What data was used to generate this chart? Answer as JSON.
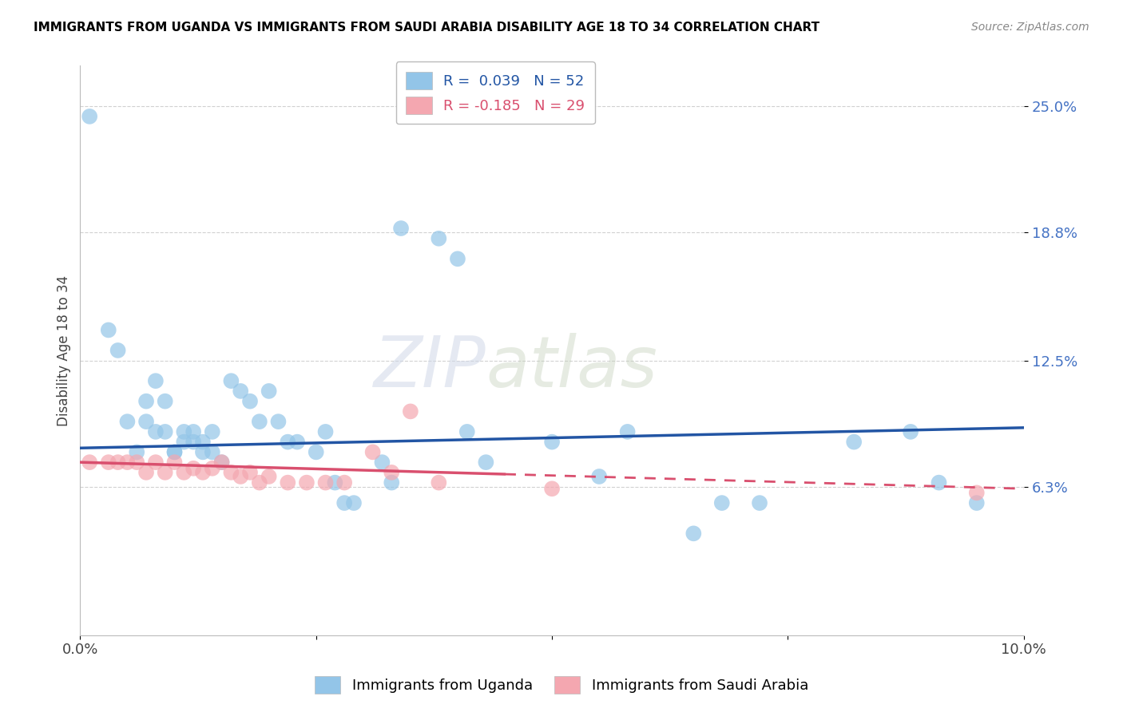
{
  "title": "IMMIGRANTS FROM UGANDA VS IMMIGRANTS FROM SAUDI ARABIA DISABILITY AGE 18 TO 34 CORRELATION CHART",
  "source": "Source: ZipAtlas.com",
  "ylabel": "Disability Age 18 to 34",
  "ytick_labels": [
    "6.3%",
    "12.5%",
    "18.8%",
    "25.0%"
  ],
  "ytick_values": [
    0.063,
    0.125,
    0.188,
    0.25
  ],
  "xlim": [
    0.0,
    0.1
  ],
  "ylim": [
    -0.01,
    0.27
  ],
  "color_uganda": "#93c5e8",
  "color_saudi": "#f4a7b0",
  "color_line_uganda": "#2255a4",
  "color_line_saudi": "#d94f6e",
  "watermark_zip": "ZIP",
  "watermark_atlas": "atlas",
  "uganda_x": [
    0.001,
    0.003,
    0.004,
    0.005,
    0.006,
    0.007,
    0.007,
    0.008,
    0.008,
    0.009,
    0.009,
    0.01,
    0.01,
    0.011,
    0.011,
    0.012,
    0.012,
    0.013,
    0.013,
    0.014,
    0.014,
    0.015,
    0.016,
    0.017,
    0.018,
    0.019,
    0.02,
    0.021,
    0.022,
    0.023,
    0.025,
    0.026,
    0.027,
    0.028,
    0.029,
    0.032,
    0.033,
    0.034,
    0.038,
    0.04,
    0.041,
    0.043,
    0.05,
    0.055,
    0.058,
    0.065,
    0.068,
    0.072,
    0.082,
    0.088,
    0.091,
    0.095
  ],
  "uganda_y": [
    0.245,
    0.14,
    0.13,
    0.095,
    0.08,
    0.105,
    0.095,
    0.115,
    0.09,
    0.105,
    0.09,
    0.08,
    0.08,
    0.09,
    0.085,
    0.09,
    0.085,
    0.085,
    0.08,
    0.09,
    0.08,
    0.075,
    0.115,
    0.11,
    0.105,
    0.095,
    0.11,
    0.095,
    0.085,
    0.085,
    0.08,
    0.09,
    0.065,
    0.055,
    0.055,
    0.075,
    0.065,
    0.19,
    0.185,
    0.175,
    0.09,
    0.075,
    0.085,
    0.068,
    0.09,
    0.04,
    0.055,
    0.055,
    0.085,
    0.09,
    0.065,
    0.055
  ],
  "saudi_x": [
    0.001,
    0.003,
    0.004,
    0.005,
    0.006,
    0.007,
    0.008,
    0.009,
    0.01,
    0.011,
    0.012,
    0.013,
    0.014,
    0.015,
    0.016,
    0.017,
    0.018,
    0.019,
    0.02,
    0.022,
    0.024,
    0.026,
    0.028,
    0.031,
    0.033,
    0.035,
    0.038,
    0.05,
    0.095
  ],
  "saudi_y": [
    0.075,
    0.075,
    0.075,
    0.075,
    0.075,
    0.07,
    0.075,
    0.07,
    0.075,
    0.07,
    0.072,
    0.07,
    0.072,
    0.075,
    0.07,
    0.068,
    0.07,
    0.065,
    0.068,
    0.065,
    0.065,
    0.065,
    0.065,
    0.08,
    0.07,
    0.1,
    0.065,
    0.062,
    0.06
  ],
  "trendline_uganda_x0": 0.0,
  "trendline_uganda_y0": 0.082,
  "trendline_uganda_x1": 0.1,
  "trendline_uganda_y1": 0.092,
  "trendline_saudi_x0": 0.0,
  "trendline_saudi_y0": 0.075,
  "trendline_saudi_x1": 0.1,
  "trendline_saudi_y1": 0.062,
  "trendline_saudi_solid_end": 0.045,
  "legend1_label": "R =  0.039   N = 52",
  "legend2_label": "R = -0.185   N = 29",
  "bottom_legend1": "Immigrants from Uganda",
  "bottom_legend2": "Immigrants from Saudi Arabia"
}
